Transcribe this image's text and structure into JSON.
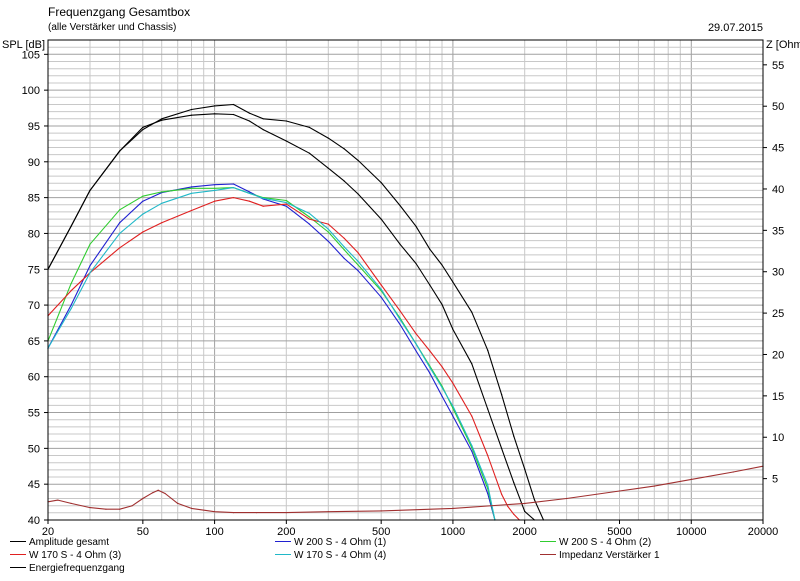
{
  "header": {
    "title": "Frequenzgang Gesamtbox",
    "subtitle": "(alle Verstärker und Chassis)",
    "date": "29.07.2015"
  },
  "colors": {
    "grid": "#c8c8c8",
    "grid_major": "#a0a0a0",
    "frame": "#000000"
  },
  "chart_data": {
    "type": "line",
    "x_scale": "log",
    "xlim": [
      20,
      20000
    ],
    "ylim": [
      40,
      107
    ],
    "y2lim": [
      0,
      58
    ],
    "ylabel": "SPL [dB]",
    "y2label": "Z [Ohm]",
    "x_ticks": [
      {
        "value": 20,
        "label": "20"
      },
      {
        "value": 50,
        "label": "50"
      },
      {
        "value": 100,
        "label": "100"
      },
      {
        "value": 200,
        "label": "200"
      },
      {
        "value": 500,
        "label": "500"
      },
      {
        "value": 1000,
        "label": "1000"
      },
      {
        "value": 2000,
        "label": "2000"
      },
      {
        "value": 5000,
        "label": "5000"
      },
      {
        "value": 10000,
        "label": "10000"
      },
      {
        "value": 20000,
        "label": "20000"
      }
    ],
    "y_ticks": [
      "40",
      "45",
      "50",
      "55",
      "60",
      "65",
      "70",
      "75",
      "80",
      "85",
      "90",
      "95",
      "100",
      "105"
    ],
    "y2_ticks": [
      "5",
      "10",
      "15",
      "20",
      "25",
      "30",
      "35",
      "40",
      "45",
      "50",
      "55"
    ],
    "grid": true,
    "legend_position": "bottom",
    "series": [
      {
        "name": "Amplitude gesamt",
        "color": "#000000",
        "axis": "left",
        "x": [
          20,
          25,
          30,
          40,
          50,
          60,
          80,
          100,
          120,
          140,
          160,
          200,
          250,
          300,
          350,
          400,
          500,
          600,
          700,
          800,
          900,
          1000,
          1200,
          1400,
          1600,
          1800,
          2000,
          2200,
          2400
        ],
        "y": [
          75,
          81,
          86,
          91.5,
          94.5,
          96,
          97.3,
          97.8,
          98,
          96.8,
          96,
          95.7,
          94.8,
          93.3,
          91.8,
          90.2,
          87.1,
          83.9,
          81,
          77.8,
          75.6,
          73.2,
          69,
          63.7,
          57.5,
          51.7,
          47.1,
          42.8,
          40
        ]
      },
      {
        "name": "Energiefrequenzgang",
        "color": "#000000",
        "axis": "left",
        "x": [
          20,
          25,
          30,
          40,
          50,
          60,
          80,
          100,
          120,
          140,
          160,
          200,
          250,
          300,
          350,
          400,
          500,
          600,
          700,
          800,
          900,
          1000,
          1200,
          1400,
          1600,
          1800,
          2000,
          2200
        ],
        "y": [
          75,
          81,
          86,
          91.5,
          94.8,
          95.8,
          96.5,
          96.7,
          96.6,
          95.7,
          94.5,
          92.9,
          91.2,
          89.1,
          87.3,
          85.5,
          82,
          78.5,
          75.8,
          72.8,
          70.1,
          66.6,
          61.8,
          55.5,
          50,
          45.2,
          41.2,
          40
        ]
      },
      {
        "name": "W 200 S - 4 Ohm (1)",
        "color": "#2020d0",
        "axis": "left",
        "x": [
          20,
          25,
          30,
          40,
          50,
          60,
          80,
          100,
          120,
          140,
          160,
          200,
          250,
          300,
          350,
          400,
          500,
          600,
          700,
          800,
          900,
          1000,
          1200,
          1400,
          1500
        ],
        "y": [
          64,
          70,
          75.5,
          81.5,
          84.5,
          85.7,
          86.5,
          86.8,
          86.9,
          85.8,
          84.8,
          83.8,
          81.3,
          78.9,
          76.5,
          74.8,
          71.1,
          67.3,
          63.6,
          60.5,
          57.3,
          54.5,
          49.6,
          43.7,
          40
        ]
      },
      {
        "name": "W 200 S - 4 Ohm (2)",
        "color": "#30cc30",
        "axis": "left",
        "x": [
          20,
          25,
          30,
          40,
          50,
          60,
          80,
          100,
          120,
          140,
          160,
          200,
          250,
          300,
          350,
          400,
          500,
          600,
          700,
          800,
          900,
          1000,
          1200,
          1400,
          1500
        ],
        "y": [
          65,
          73,
          78.5,
          83.3,
          85.2,
          85.8,
          86.3,
          86.3,
          86.4,
          85.6,
          85,
          84.6,
          82.3,
          80.2,
          77.7,
          75.6,
          72,
          68.2,
          64.6,
          61.5,
          58.7,
          55.6,
          50.1,
          44.4,
          40
        ]
      },
      {
        "name": "W 170 S - 4 Ohm (3)",
        "color": "#e02020",
        "axis": "left",
        "x": [
          20,
          25,
          30,
          40,
          50,
          60,
          80,
          100,
          120,
          140,
          160,
          200,
          250,
          300,
          350,
          400,
          500,
          600,
          700,
          800,
          900,
          1000,
          1200,
          1400,
          1600,
          1700,
          1800,
          1900
        ],
        "y": [
          68.5,
          72,
          74.5,
          78,
          80.2,
          81.5,
          83.2,
          84.5,
          85,
          84.5,
          83.8,
          84.1,
          82,
          81.3,
          79.3,
          77.3,
          72.8,
          69.2,
          66,
          63.6,
          61.4,
          59.1,
          54.5,
          49,
          43.6,
          41.9,
          40.8,
          40
        ]
      },
      {
        "name": "W 170 S - 4 Ohm (4)",
        "color": "#20b8c8",
        "axis": "left",
        "x": [
          20,
          25,
          30,
          40,
          50,
          60,
          80,
          100,
          120,
          140,
          160,
          200,
          250,
          300,
          350,
          400,
          500,
          600,
          700,
          800,
          900,
          1000,
          1200,
          1400,
          1500
        ],
        "y": [
          64,
          69.5,
          74.5,
          80,
          82.7,
          84.2,
          85.6,
          86,
          86.4,
          85.6,
          84.9,
          84.3,
          82.8,
          80.6,
          78.1,
          76.1,
          72.2,
          68,
          64.6,
          61.3,
          58.5,
          55.9,
          50.4,
          44.9,
          40
        ]
      },
      {
        "name": "Impedanz Verstärker 1",
        "color": "#a03030",
        "axis": "right",
        "x": [
          20,
          22,
          25,
          30,
          35,
          40,
          45,
          50,
          55,
          58,
          62,
          70,
          80,
          100,
          120,
          150,
          200,
          300,
          500,
          1000,
          2000,
          3000,
          5000,
          7000,
          10000,
          15000,
          20000
        ],
        "y": [
          2.2,
          2.4,
          2,
          1.5,
          1.3,
          1.3,
          1.7,
          2.6,
          3.3,
          3.6,
          3.2,
          2,
          1.4,
          1,
          0.9,
          0.9,
          0.9,
          1,
          1.1,
          1.4,
          2,
          2.6,
          3.5,
          4.1,
          4.9,
          5.8,
          6.5
        ]
      }
    ]
  }
}
